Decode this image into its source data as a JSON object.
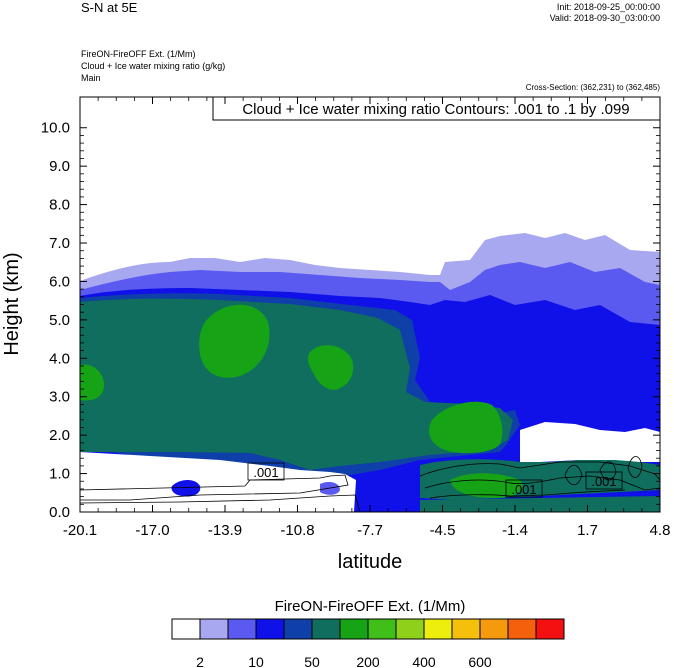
{
  "header": {
    "top_left": "S-N at 5E",
    "init": "Init: 2018-09-25_00:00:00",
    "valid": "Valid: 2018-09-30_03:00:00",
    "field_line1": "FireON-FireOFF Ext.   (1/Mm)",
    "field_line2": "Cloud + Ice water mixing ratio   (g/kg)",
    "field_line3": "Main",
    "cross_section": "Cross-Section: (362,231) to (362,485)"
  },
  "chart_data": {
    "type": "heatmap",
    "title": "Cloud + Ice water mixing ratio Contours: .001 to .1 by .099",
    "xlabel": "latitude",
    "ylabel": "Height (km)",
    "xlim": [
      -20.1,
      4.8
    ],
    "ylim": [
      0.0,
      10.8
    ],
    "x_ticks": [
      "-20.1",
      "-17.0",
      "-13.9",
      "-10.8",
      "-7.7",
      "-4.5",
      "-1.4",
      "1.7",
      "4.8"
    ],
    "y_ticks": [
      "0.0",
      "1.0",
      "2.0",
      "3.0",
      "4.0",
      "5.0",
      "6.0",
      "7.0",
      "8.0",
      "9.0",
      "10.0"
    ],
    "contour_labels": [
      ".001",
      ".001",
      ".001"
    ],
    "colorbar": {
      "title": "FireON-FireOFF Ext.  (1/Mm)",
      "colors": [
        "#ffffff",
        "#a8a8f0",
        "#5a5af0",
        "#1010e8",
        "#0f3fa8",
        "#0f6e5e",
        "#16a416",
        "#3fbf18",
        "#8ed01a",
        "#eeee0c",
        "#f4c00c",
        "#f49a0c",
        "#f4600c",
        "#f41010"
      ],
      "labels": [
        "2",
        "10",
        "50",
        "200",
        "400",
        "600"
      ]
    }
  }
}
